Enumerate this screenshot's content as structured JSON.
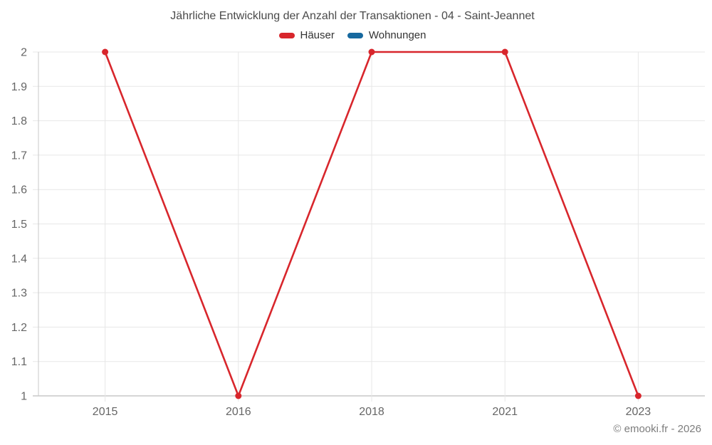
{
  "header": {
    "title": "Jährliche Entwicklung der Anzahl der Transaktionen - 04 - Saint-Jeannet"
  },
  "legend": {
    "items": [
      {
        "label": "Häuser",
        "color": "#d8262c"
      },
      {
        "label": "Wohnungen",
        "color": "#17699f"
      }
    ]
  },
  "footer": {
    "copyright": "© emooki.fr - 2026"
  },
  "chart_data": {
    "type": "line",
    "title": "Jährliche Entwicklung der Anzahl der Transaktionen - 04 - Saint-Jeannet",
    "xlabel": "",
    "ylabel": "",
    "categories": [
      "2015",
      "2016",
      "2018",
      "2021",
      "2023"
    ],
    "series": [
      {
        "name": "Häuser",
        "color": "#d8262c",
        "values": [
          2,
          1,
          2,
          2,
          1
        ]
      },
      {
        "name": "Wohnungen",
        "color": "#17699f",
        "values": []
      }
    ],
    "ylim": [
      1,
      2
    ],
    "ytick_step": 0.1,
    "yticks": [
      "2",
      "1.9",
      "1.8",
      "1.7",
      "1.6",
      "1.5",
      "1.4",
      "1.3",
      "1.2",
      "1.1",
      "1"
    ],
    "grid": true,
    "legend_position": "top"
  }
}
